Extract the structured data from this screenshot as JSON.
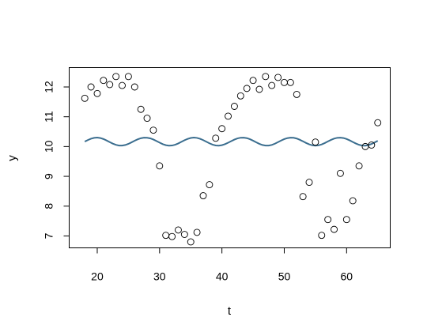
{
  "chart_data": {
    "type": "scatter",
    "xlabel": "t",
    "ylabel": "y",
    "xlim": [
      15.5,
      67
    ],
    "ylim": [
      6.6,
      12.65
    ],
    "x_ticks": [
      20,
      30,
      40,
      50,
      60
    ],
    "y_ticks": [
      7,
      8,
      9,
      10,
      11,
      12
    ],
    "grid": false,
    "legend": "none",
    "series": [
      {
        "type": "scatter",
        "marker": "open-circle",
        "color": "#000000",
        "points": [
          [
            18,
            11.62
          ],
          [
            19,
            12.0
          ],
          [
            20,
            11.78
          ],
          [
            21,
            12.22
          ],
          [
            22,
            12.08
          ],
          [
            23,
            12.35
          ],
          [
            24,
            12.05
          ],
          [
            25,
            12.35
          ],
          [
            26,
            12.0
          ],
          [
            27,
            11.25
          ],
          [
            28,
            10.95
          ],
          [
            29,
            10.55
          ],
          [
            30,
            9.35
          ],
          [
            31,
            7.02
          ],
          [
            32,
            6.98
          ],
          [
            33,
            7.2
          ],
          [
            34,
            7.05
          ],
          [
            35,
            6.8
          ],
          [
            36,
            7.12
          ],
          [
            37,
            8.35
          ],
          [
            38,
            8.72
          ],
          [
            39,
            10.28
          ],
          [
            40,
            10.6
          ],
          [
            41,
            11.02
          ],
          [
            42,
            11.35
          ],
          [
            43,
            11.7
          ],
          [
            44,
            11.95
          ],
          [
            45,
            12.22
          ],
          [
            46,
            11.92
          ],
          [
            47,
            12.35
          ],
          [
            48,
            12.05
          ],
          [
            49,
            12.32
          ],
          [
            50,
            12.15
          ],
          [
            51,
            12.15
          ],
          [
            52,
            11.75
          ],
          [
            53,
            8.32
          ],
          [
            54,
            8.8
          ],
          [
            55,
            10.15
          ],
          [
            56,
            7.02
          ],
          [
            57,
            7.55
          ],
          [
            58,
            7.22
          ],
          [
            59,
            9.1
          ],
          [
            60,
            7.55
          ],
          [
            61,
            8.18
          ],
          [
            62,
            9.35
          ],
          [
            63,
            10.0
          ],
          [
            64,
            10.05
          ],
          [
            65,
            10.8
          ]
        ]
      },
      {
        "type": "line",
        "color": "#3b6e8f",
        "x": [
          18.0,
          18.5,
          19.0,
          19.5,
          20.0,
          20.5,
          21.0,
          21.5,
          22.0,
          22.5,
          23.0,
          23.5,
          24.0,
          24.5,
          25.0,
          25.5,
          26.0,
          26.5,
          27.0,
          27.5,
          28.0,
          28.5,
          29.0,
          29.5,
          30.0,
          30.5,
          31.0,
          31.5,
          32.0,
          32.5,
          33.0,
          33.5,
          34.0,
          34.5,
          35.0,
          35.5,
          36.0,
          36.5,
          37.0,
          37.5,
          38.0,
          38.5,
          39.0,
          39.5,
          40.0,
          40.5,
          41.0,
          41.5,
          42.0,
          42.5,
          43.0,
          43.5,
          44.0,
          44.5,
          45.0,
          45.5,
          46.0,
          46.5,
          47.0,
          47.5,
          48.0,
          48.5,
          49.0,
          49.5,
          50.0,
          50.5,
          51.0,
          51.5,
          52.0,
          52.5,
          53.0,
          53.5,
          54.0,
          54.5,
          55.0,
          55.5,
          56.0,
          56.5,
          57.0,
          57.5,
          58.0,
          58.5,
          59.0,
          59.5,
          60.0,
          60.5,
          61.0,
          61.5,
          62.0,
          62.5,
          63.0,
          63.5,
          64.0,
          64.5,
          65.0
        ],
        "y": [
          10.168,
          10.219,
          10.263,
          10.292,
          10.3,
          10.286,
          10.252,
          10.204,
          10.15,
          10.098,
          10.057,
          10.034,
          10.032,
          10.052,
          10.09,
          10.141,
          10.195,
          10.244,
          10.279,
          10.298,
          10.296,
          10.275,
          10.236,
          10.185,
          10.132,
          10.082,
          10.047,
          10.031,
          10.035,
          10.061,
          10.104,
          10.158,
          10.212,
          10.257,
          10.288,
          10.3,
          10.29,
          10.261,
          10.215,
          10.163,
          10.109,
          10.065,
          10.037,
          10.03,
          10.046,
          10.081,
          10.13,
          10.183,
          10.234,
          10.273,
          10.296,
          10.298,
          10.282,
          10.246,
          10.197,
          10.143,
          10.091,
          10.052,
          10.032,
          10.033,
          10.055,
          10.096,
          10.148,
          10.202,
          10.249,
          10.283,
          10.299,
          10.294,
          10.269,
          10.227,
          10.175,
          10.121,
          10.074,
          10.042,
          10.03,
          10.041,
          10.072,
          10.118,
          10.172,
          10.224,
          10.266,
          10.293,
          10.299,
          10.286,
          10.254,
          10.207,
          10.153,
          10.101,
          10.059,
          10.034,
          10.031,
          10.05,
          10.087,
          10.137,
          10.191
        ]
      }
    ]
  }
}
